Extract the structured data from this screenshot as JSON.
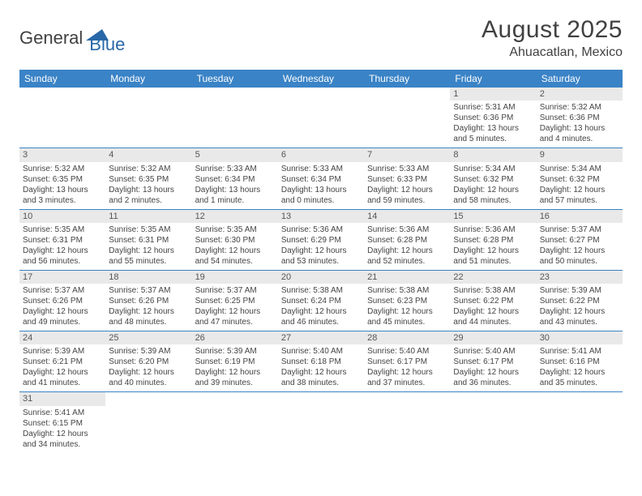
{
  "logo": {
    "part1": "General",
    "part2": "Blue",
    "triangle_color": "#2968a8"
  },
  "header": {
    "title": "August 2025",
    "location": "Ahuacatlan, Mexico"
  },
  "colors": {
    "header_bg": "#3a83c6",
    "header_fg": "#ffffff",
    "daynum_bg": "#e9e9e9",
    "cell_border": "#3a83c6",
    "text": "#444444",
    "title_color": "#414141"
  },
  "weekdays": [
    "Sunday",
    "Monday",
    "Tuesday",
    "Wednesday",
    "Thursday",
    "Friday",
    "Saturday"
  ],
  "days": {
    "1": {
      "sunrise": "5:31 AM",
      "sunset": "6:36 PM",
      "daylight": "13 hours and 5 minutes."
    },
    "2": {
      "sunrise": "5:32 AM",
      "sunset": "6:36 PM",
      "daylight": "13 hours and 4 minutes."
    },
    "3": {
      "sunrise": "5:32 AM",
      "sunset": "6:35 PM",
      "daylight": "13 hours and 3 minutes."
    },
    "4": {
      "sunrise": "5:32 AM",
      "sunset": "6:35 PM",
      "daylight": "13 hours and 2 minutes."
    },
    "5": {
      "sunrise": "5:33 AM",
      "sunset": "6:34 PM",
      "daylight": "13 hours and 1 minute."
    },
    "6": {
      "sunrise": "5:33 AM",
      "sunset": "6:34 PM",
      "daylight": "13 hours and 0 minutes."
    },
    "7": {
      "sunrise": "5:33 AM",
      "sunset": "6:33 PM",
      "daylight": "12 hours and 59 minutes."
    },
    "8": {
      "sunrise": "5:34 AM",
      "sunset": "6:32 PM",
      "daylight": "12 hours and 58 minutes."
    },
    "9": {
      "sunrise": "5:34 AM",
      "sunset": "6:32 PM",
      "daylight": "12 hours and 57 minutes."
    },
    "10": {
      "sunrise": "5:35 AM",
      "sunset": "6:31 PM",
      "daylight": "12 hours and 56 minutes."
    },
    "11": {
      "sunrise": "5:35 AM",
      "sunset": "6:31 PM",
      "daylight": "12 hours and 55 minutes."
    },
    "12": {
      "sunrise": "5:35 AM",
      "sunset": "6:30 PM",
      "daylight": "12 hours and 54 minutes."
    },
    "13": {
      "sunrise": "5:36 AM",
      "sunset": "6:29 PM",
      "daylight": "12 hours and 53 minutes."
    },
    "14": {
      "sunrise": "5:36 AM",
      "sunset": "6:28 PM",
      "daylight": "12 hours and 52 minutes."
    },
    "15": {
      "sunrise": "5:36 AM",
      "sunset": "6:28 PM",
      "daylight": "12 hours and 51 minutes."
    },
    "16": {
      "sunrise": "5:37 AM",
      "sunset": "6:27 PM",
      "daylight": "12 hours and 50 minutes."
    },
    "17": {
      "sunrise": "5:37 AM",
      "sunset": "6:26 PM",
      "daylight": "12 hours and 49 minutes."
    },
    "18": {
      "sunrise": "5:37 AM",
      "sunset": "6:26 PM",
      "daylight": "12 hours and 48 minutes."
    },
    "19": {
      "sunrise": "5:37 AM",
      "sunset": "6:25 PM",
      "daylight": "12 hours and 47 minutes."
    },
    "20": {
      "sunrise": "5:38 AM",
      "sunset": "6:24 PM",
      "daylight": "12 hours and 46 minutes."
    },
    "21": {
      "sunrise": "5:38 AM",
      "sunset": "6:23 PM",
      "daylight": "12 hours and 45 minutes."
    },
    "22": {
      "sunrise": "5:38 AM",
      "sunset": "6:22 PM",
      "daylight": "12 hours and 44 minutes."
    },
    "23": {
      "sunrise": "5:39 AM",
      "sunset": "6:22 PM",
      "daylight": "12 hours and 43 minutes."
    },
    "24": {
      "sunrise": "5:39 AM",
      "sunset": "6:21 PM",
      "daylight": "12 hours and 41 minutes."
    },
    "25": {
      "sunrise": "5:39 AM",
      "sunset": "6:20 PM",
      "daylight": "12 hours and 40 minutes."
    },
    "26": {
      "sunrise": "5:39 AM",
      "sunset": "6:19 PM",
      "daylight": "12 hours and 39 minutes."
    },
    "27": {
      "sunrise": "5:40 AM",
      "sunset": "6:18 PM",
      "daylight": "12 hours and 38 minutes."
    },
    "28": {
      "sunrise": "5:40 AM",
      "sunset": "6:17 PM",
      "daylight": "12 hours and 37 minutes."
    },
    "29": {
      "sunrise": "5:40 AM",
      "sunset": "6:17 PM",
      "daylight": "12 hours and 36 minutes."
    },
    "30": {
      "sunrise": "5:41 AM",
      "sunset": "6:16 PM",
      "daylight": "12 hours and 35 minutes."
    },
    "31": {
      "sunrise": "5:41 AM",
      "sunset": "6:15 PM",
      "daylight": "12 hours and 34 minutes."
    }
  },
  "labels": {
    "sunrise": "Sunrise: ",
    "sunset": "Sunset: ",
    "daylight": "Daylight: "
  },
  "layout": {
    "first_weekday_index": 5,
    "days_in_month": 31
  }
}
